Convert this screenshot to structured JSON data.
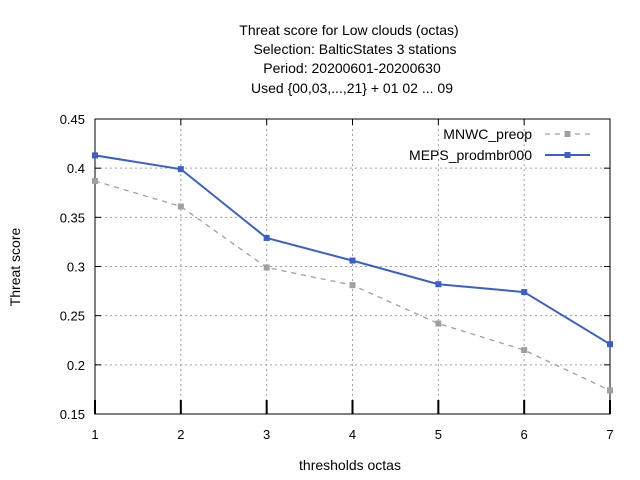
{
  "chart_data": {
    "type": "line",
    "title_lines": [
      "Threat score  for Low clouds (octas)",
      "Selection: BalticStates      3 stations",
      "Period: 20200601-20200630",
      "Used {00,03,...,21} + 01 02 ... 09"
    ],
    "xlabel": "thresholds octas",
    "ylabel": "Threat score",
    "x": [
      1,
      2,
      3,
      4,
      5,
      6,
      7
    ],
    "xlim": [
      1,
      7
    ],
    "ylim": [
      0.15,
      0.45
    ],
    "x_ticks": [
      "1",
      "2",
      "3",
      "4",
      "5",
      "6",
      "7"
    ],
    "y_ticks": [
      "0.15",
      "0.2",
      "0.25",
      "0.3",
      "0.35",
      "0.4",
      "0.45"
    ],
    "grid": true,
    "legend_position": "top-right",
    "series": [
      {
        "name": "MNWC_preop",
        "values": [
          0.387,
          0.361,
          0.299,
          0.281,
          0.242,
          0.215,
          0.174
        ],
        "color": "#a0a0a0",
        "style": "dashed"
      },
      {
        "name": "MEPS_prodmbr000",
        "values": [
          0.413,
          0.399,
          0.329,
          0.306,
          0.282,
          0.274,
          0.221
        ],
        "color": "#3a5fcd",
        "style": "solid"
      }
    ]
  }
}
